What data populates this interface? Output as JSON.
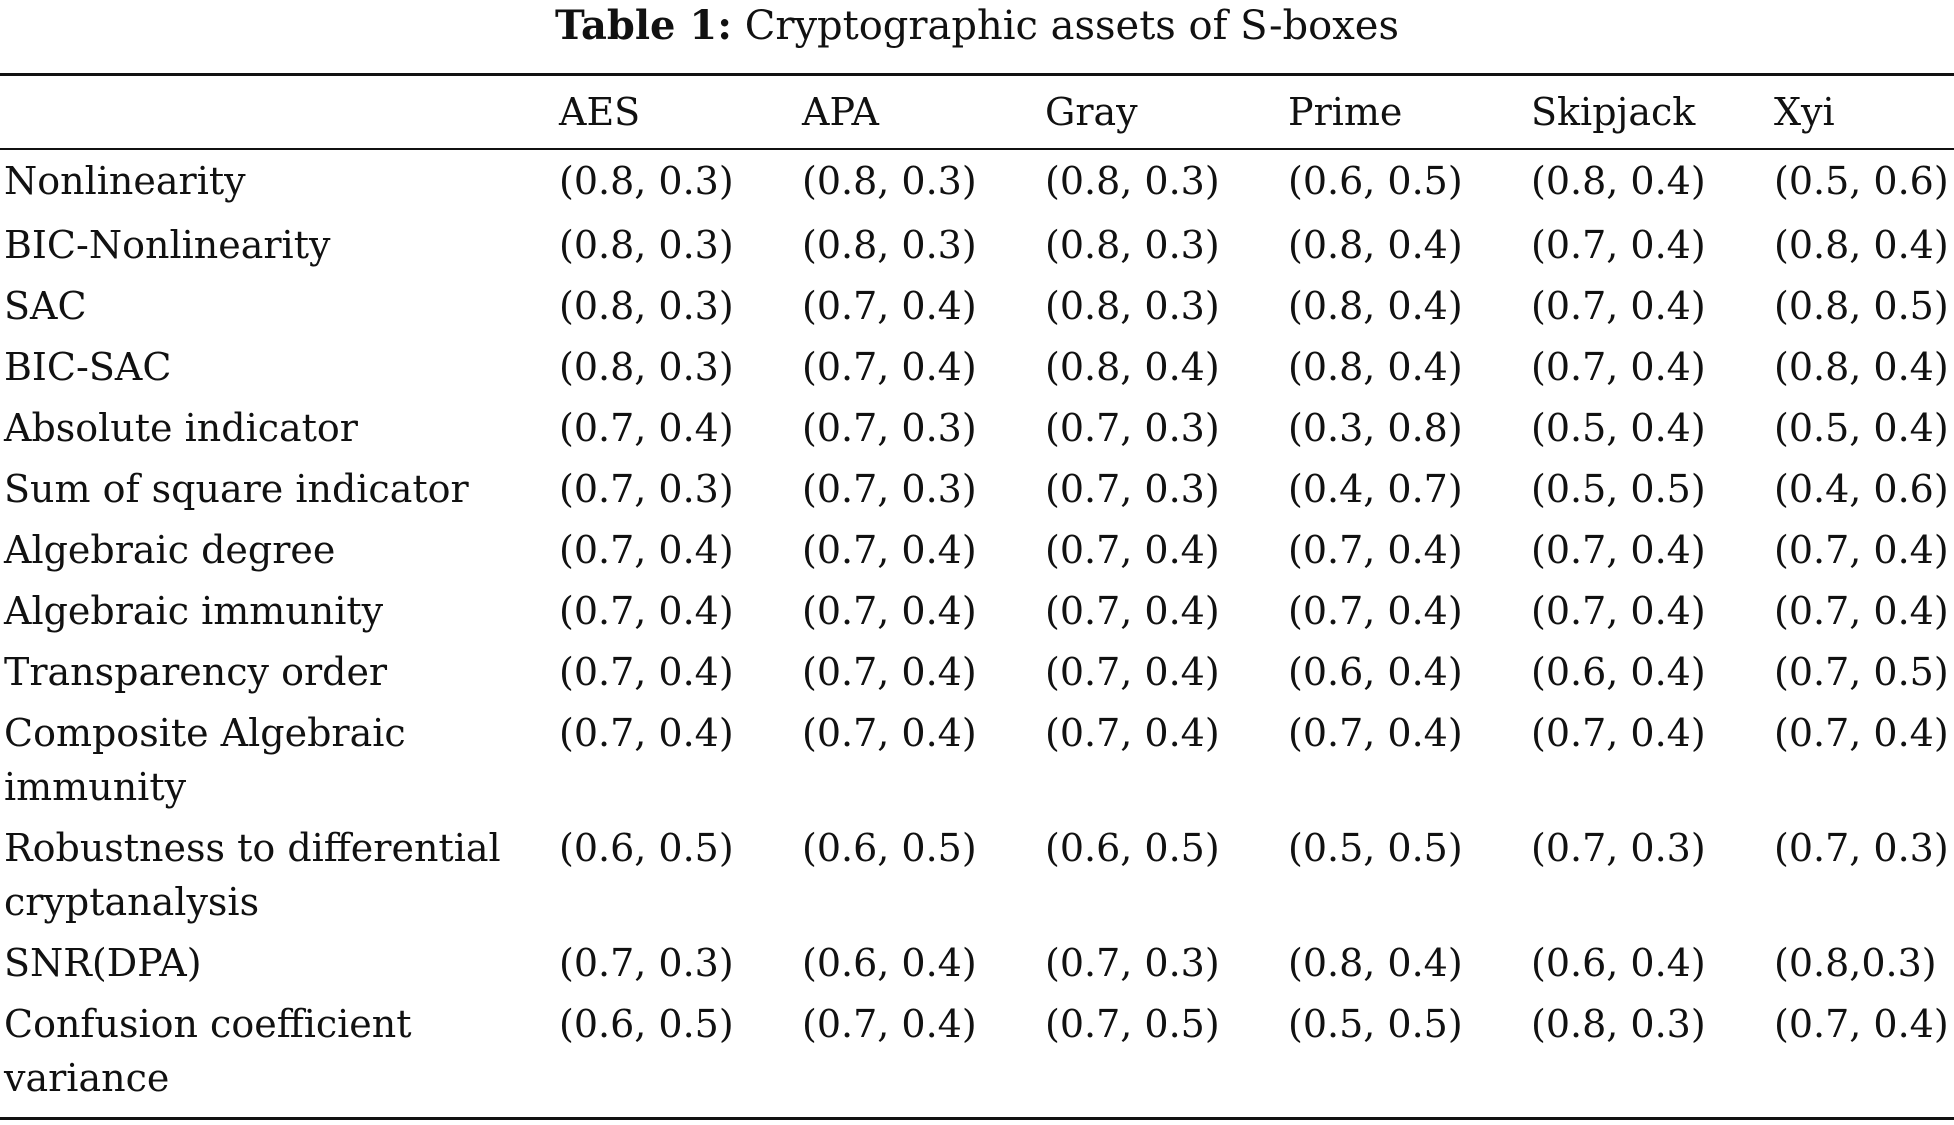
{
  "caption": {
    "label": "Table 1:",
    "text": "Cryptographic assets of S-boxes"
  },
  "table": {
    "columns": [
      "AES",
      "APA",
      "Gray",
      "Prime",
      "Skipjack",
      "Xyi"
    ],
    "rows": [
      {
        "label": "Nonlinearity",
        "values": [
          "(0.8, 0.3)",
          "(0.8, 0.3)",
          "(0.8, 0.3)",
          "(0.6, 0.5)",
          "(0.8, 0.4)",
          "(0.5, 0.6)"
        ]
      },
      {
        "label": "BIC-Nonlinearity",
        "values": [
          "(0.8, 0.3)",
          "(0.8, 0.3)",
          "(0.8, 0.3)",
          "(0.8, 0.4)",
          "(0.7, 0.4)",
          "(0.8, 0.4)"
        ]
      },
      {
        "label": "SAC",
        "values": [
          "(0.8, 0.3)",
          "(0.7, 0.4)",
          "(0.8, 0.3)",
          "(0.8, 0.4)",
          "(0.7, 0.4)",
          "(0.8, 0.5)"
        ]
      },
      {
        "label": "BIC-SAC",
        "values": [
          "(0.8, 0.3)",
          "(0.7, 0.4)",
          "(0.8, 0.4)",
          "(0.8, 0.4)",
          "(0.7, 0.4)",
          "(0.8, 0.4)"
        ]
      },
      {
        "label": "Absolute indicator",
        "values": [
          "(0.7, 0.4)",
          "(0.7, 0.3)",
          "(0.7, 0.3)",
          "(0.3, 0.8)",
          "(0.5, 0.4)",
          "(0.5, 0.4)"
        ]
      },
      {
        "label": "Sum of square indicator",
        "values": [
          "(0.7, 0.3)",
          "(0.7, 0.3)",
          "(0.7, 0.3)",
          "(0.4, 0.7)",
          "(0.5, 0.5)",
          "(0.4, 0.6)"
        ]
      },
      {
        "label": "Algebraic degree",
        "values": [
          "(0.7, 0.4)",
          "(0.7, 0.4)",
          "(0.7, 0.4)",
          "(0.7, 0.4)",
          "(0.7, 0.4)",
          "(0.7, 0.4)"
        ]
      },
      {
        "label": "Algebraic immunity",
        "values": [
          "(0.7, 0.4)",
          "(0.7, 0.4)",
          "(0.7, 0.4)",
          "(0.7, 0.4)",
          "(0.7, 0.4)",
          "(0.7, 0.4)"
        ]
      },
      {
        "label": "Transparency order",
        "values": [
          "(0.7, 0.4)",
          "(0.7, 0.4)",
          "(0.7, 0.4)",
          "(0.6, 0.4)",
          "(0.6, 0.4)",
          "(0.7, 0.5)"
        ]
      },
      {
        "label": "Composite Algebraic immunity",
        "values": [
          "(0.7, 0.4)",
          "(0.7, 0.4)",
          "(0.7, 0.4)",
          "(0.7, 0.4)",
          "(0.7, 0.4)",
          "(0.7, 0.4)"
        ]
      },
      {
        "label": "Robustness to differential cryptanalysis",
        "values": [
          "(0.6, 0.5)",
          "(0.6, 0.5)",
          "(0.6, 0.5)",
          "(0.5, 0.5)",
          "(0.7, 0.3)",
          "(0.7, 0.3)"
        ]
      },
      {
        "label": "SNR(DPA)",
        "values": [
          "(0.7, 0.3)",
          "(0.6, 0.4)",
          "(0.7, 0.3)",
          "(0.8, 0.4)",
          "(0.6, 0.4)",
          "(0.8,0.3)"
        ]
      },
      {
        "label": "Confusion coefficient variance",
        "values": [
          "(0.6, 0.5)",
          "(0.7, 0.4)",
          "(0.7, 0.5)",
          "(0.5, 0.5)",
          "(0.8, 0.3)",
          "(0.7, 0.4)"
        ]
      }
    ]
  }
}
